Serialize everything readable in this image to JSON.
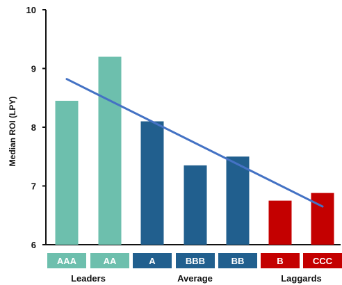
{
  "chart_data": {
    "type": "bar",
    "title": "",
    "xlabel": "",
    "ylabel": "Median ROI (LPY)",
    "ylim": [
      6,
      10
    ],
    "yticks": [
      6,
      7,
      8,
      9,
      10
    ],
    "grid": false,
    "categories": [
      "AAA",
      "AA",
      "A",
      "BBB",
      "BB",
      "B",
      "CCC"
    ],
    "values": [
      8.45,
      9.2,
      8.1,
      7.35,
      7.5,
      6.75,
      6.88
    ],
    "bar_colors": [
      "#6dbfad",
      "#6dbfad",
      "#215f8e",
      "#215f8e",
      "#215f8e",
      "#c40000",
      "#c40000"
    ],
    "groups": [
      {
        "name": "Leaders",
        "categories": [
          "AAA",
          "AA"
        ],
        "color": "#6dbfad"
      },
      {
        "name": "Average",
        "categories": [
          "A",
          "BBB",
          "BB"
        ],
        "color": "#215f8e"
      },
      {
        "name": "Laggards",
        "categories": [
          "B",
          "CCC"
        ],
        "color": "#c40000"
      }
    ],
    "trendline": {
      "start": {
        "category": "AAA",
        "y": 8.82
      },
      "end": {
        "category": "CCC",
        "y": 6.65
      },
      "color": "#4472c4"
    }
  }
}
